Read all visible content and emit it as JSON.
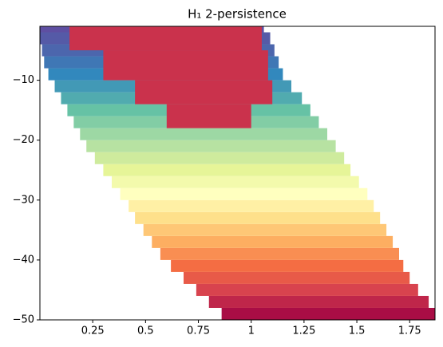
{
  "chart_data": {
    "type": "heatmap",
    "title": "H₁ 2-persistence",
    "xlim": [
      0,
      1.87
    ],
    "ylim": [
      -50,
      -1
    ],
    "xticks": [
      0.25,
      0.5,
      0.75,
      1.0,
      1.25,
      1.5,
      1.75
    ],
    "yticks": [
      {
        "value": -50,
        "label": "−50"
      },
      {
        "value": -40,
        "label": "−40"
      },
      {
        "value": -30,
        "label": "−30"
      },
      {
        "value": -20,
        "label": "−20"
      },
      {
        "value": -10,
        "label": "−10"
      }
    ],
    "colormap": [
      "#9e0142",
      "#d53e4f",
      "#f46d43",
      "#fdae61",
      "#fee08b",
      "#ffffbf",
      "#e6f598",
      "#abdda4",
      "#66c2a5",
      "#3288bd",
      "#5e4fa2"
    ],
    "clim": [
      0,
      1
    ],
    "cells": [
      {
        "y0": -50,
        "y1": -48,
        "x0": 0.86,
        "x1": 1.87,
        "value": 0.02
      },
      {
        "y0": -48,
        "y1": -46,
        "x0": 0.8,
        "x1": 1.84,
        "value": 0.06
      },
      {
        "y0": -46,
        "y1": -44,
        "x0": 0.74,
        "x1": 1.79,
        "value": 0.11
      },
      {
        "y0": -44,
        "y1": -42,
        "x0": 0.68,
        "x1": 1.75,
        "value": 0.16
      },
      {
        "y0": -42,
        "y1": -40,
        "x0": 0.62,
        "x1": 1.72,
        "value": 0.2
      },
      {
        "y0": -40,
        "y1": -38,
        "x0": 0.57,
        "x1": 1.7,
        "value": 0.25
      },
      {
        "y0": -38,
        "y1": -36,
        "x0": 0.53,
        "x1": 1.67,
        "value": 0.3
      },
      {
        "y0": -36,
        "y1": -34,
        "x0": 0.49,
        "x1": 1.64,
        "value": 0.35
      },
      {
        "y0": -34,
        "y1": -32,
        "x0": 0.45,
        "x1": 1.61,
        "value": 0.4
      },
      {
        "y0": -32,
        "y1": -30,
        "x0": 0.42,
        "x1": 1.58,
        "value": 0.45
      },
      {
        "y0": -30,
        "y1": -28,
        "x0": 0.38,
        "x1": 1.55,
        "value": 0.5
      },
      {
        "y0": -28,
        "y1": -26,
        "x0": 0.34,
        "x1": 1.51,
        "value": 0.55
      },
      {
        "y0": -26,
        "y1": -24,
        "x0": 0.3,
        "x1": 1.47,
        "value": 0.6
      },
      {
        "y0": -24,
        "y1": -22,
        "x0": 0.26,
        "x1": 1.44,
        "value": 0.64
      },
      {
        "y0": -22,
        "y1": -20,
        "x0": 0.22,
        "x1": 1.4,
        "value": 0.68
      },
      {
        "y0": -20,
        "y1": -18,
        "x0": 0.19,
        "x1": 1.36,
        "value": 0.72
      },
      {
        "y0": -18,
        "y1": -16,
        "x0": 0.16,
        "x1": 1.32,
        "value": 0.76
      },
      {
        "y0": -16,
        "y1": -14,
        "x0": 0.13,
        "x1": 1.28,
        "value": 0.8
      },
      {
        "y0": -14,
        "y1": -12,
        "x0": 0.1,
        "x1": 1.24,
        "value": 0.84
      },
      {
        "y0": -12,
        "y1": -10,
        "x0": 0.07,
        "x1": 1.19,
        "value": 0.87
      },
      {
        "y0": -10,
        "y1": -8,
        "x0": 0.04,
        "x1": 1.15,
        "value": 0.9
      },
      {
        "y0": -8,
        "y1": -6,
        "x0": 0.02,
        "x1": 1.13,
        "value": 0.93
      },
      {
        "y0": -6,
        "y1": -4,
        "x0": 0.01,
        "x1": 1.11,
        "value": 0.96
      },
      {
        "y0": -4,
        "y1": -2,
        "x0": 0,
        "x1": 1.09,
        "value": 0.98
      },
      {
        "y0": -2,
        "y1": -1,
        "x0": 0,
        "x1": 1.06,
        "value": 1
      },
      {
        "y0": -5,
        "y1": -1,
        "x0": 0.14,
        "x1": 1.05,
        "value": 0.08
      },
      {
        "y0": -10,
        "y1": -5,
        "x0": 0.3,
        "x1": 1.08,
        "value": 0.08
      },
      {
        "y0": -14,
        "y1": -10,
        "x0": 0.45,
        "x1": 1.1,
        "value": 0.08
      },
      {
        "y0": -18,
        "y1": -14,
        "x0": 0.6,
        "x1": 1.0,
        "value": 0.08
      }
    ]
  }
}
